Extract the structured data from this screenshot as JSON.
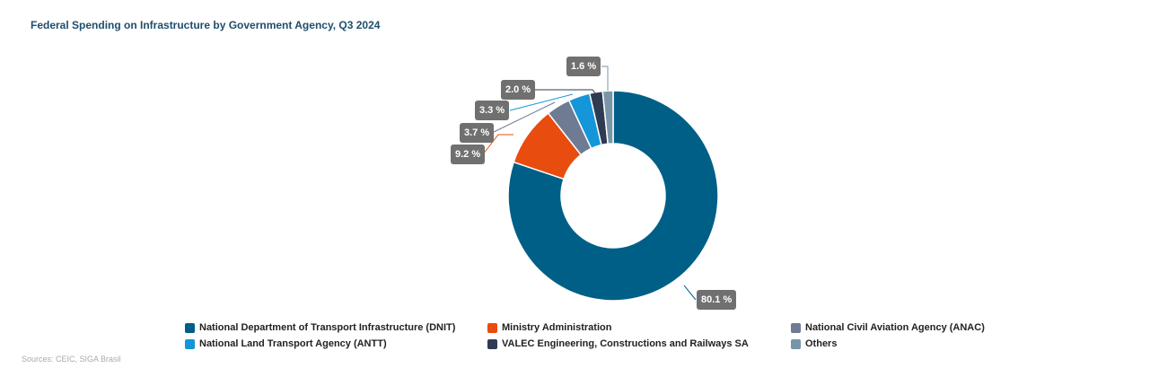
{
  "title": "Federal Spending on Infrastructure by Government Agency, Q3 2024",
  "source": "Sources: CEIC, SIGA Brasil",
  "chart_data": {
    "type": "pie",
    "donut": true,
    "title": "Federal Spending on Infrastructure by Government Agency, Q3 2024",
    "categories": [
      "National Department of Transport Infrastructure (DNIT)",
      "Ministry Administration",
      "National Civil Aviation Agency (ANAC)",
      "National Land Transport Agency (ANTT)",
      "VALEC Engineering, Constructions and Railways SA",
      "Others"
    ],
    "values": [
      80.1,
      9.2,
      3.7,
      3.3,
      2.0,
      1.6
    ],
    "labels": [
      "80.1 %",
      "9.2 %",
      "3.7 %",
      "3.3 %",
      "2.0 %",
      "1.6 %"
    ],
    "colors": [
      "#005f87",
      "#e84c0e",
      "#6e7b93",
      "#1596d8",
      "#2e3b52",
      "#7896a8"
    ],
    "legend_placement": "bottom"
  }
}
